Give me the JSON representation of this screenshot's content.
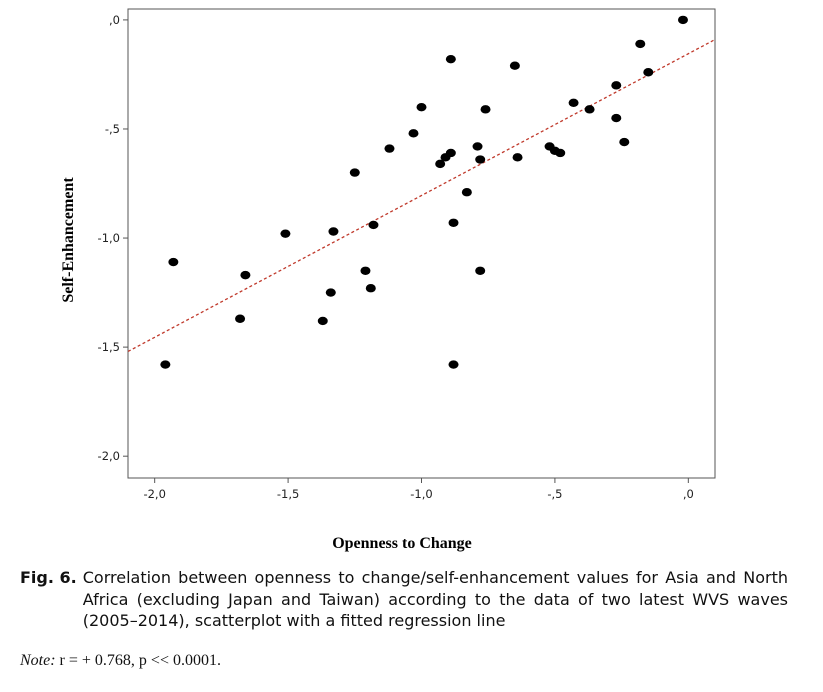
{
  "chart_data": {
    "type": "scatter",
    "xlabel": "Openness to Change",
    "ylabel": "Self-Enhancement",
    "xlim": [
      -2.1,
      0.1
    ],
    "ylim": [
      -2.1,
      0.05
    ],
    "x_ticks": [
      -2.0,
      -1.5,
      -1.0,
      -0.5,
      0.0
    ],
    "x_tick_labels": [
      "-2,0",
      "-1,5",
      "-1,0",
      "-,5",
      ",0"
    ],
    "y_ticks": [
      0.0,
      -0.5,
      -1.0,
      -1.5,
      -2.0
    ],
    "y_tick_labels": [
      ",0",
      "-,5",
      "-1,0",
      "-1,5",
      "-2,0"
    ],
    "grid": false,
    "points": [
      {
        "x": -1.96,
        "y": -1.58
      },
      {
        "x": -1.93,
        "y": -1.11
      },
      {
        "x": -1.68,
        "y": -1.37
      },
      {
        "x": -1.66,
        "y": -1.17
      },
      {
        "x": -1.51,
        "y": -0.98
      },
      {
        "x": -1.37,
        "y": -1.38
      },
      {
        "x": -1.34,
        "y": -1.25
      },
      {
        "x": -1.33,
        "y": -0.97
      },
      {
        "x": -1.25,
        "y": -0.7
      },
      {
        "x": -1.21,
        "y": -1.15
      },
      {
        "x": -1.19,
        "y": -1.23
      },
      {
        "x": -1.18,
        "y": -0.94
      },
      {
        "x": -1.12,
        "y": -0.59
      },
      {
        "x": -1.03,
        "y": -0.52
      },
      {
        "x": -1.0,
        "y": -0.4
      },
      {
        "x": -0.93,
        "y": -0.66
      },
      {
        "x": -0.91,
        "y": -0.63
      },
      {
        "x": -0.89,
        "y": -0.61
      },
      {
        "x": -0.89,
        "y": -0.18
      },
      {
        "x": -0.88,
        "y": -0.93
      },
      {
        "x": -0.88,
        "y": -1.58
      },
      {
        "x": -0.83,
        "y": -0.79
      },
      {
        "x": -0.79,
        "y": -0.58
      },
      {
        "x": -0.78,
        "y": -0.64
      },
      {
        "x": -0.78,
        "y": -1.15
      },
      {
        "x": -0.76,
        "y": -0.41
      },
      {
        "x": -0.65,
        "y": -0.21
      },
      {
        "x": -0.64,
        "y": -0.63
      },
      {
        "x": -0.52,
        "y": -0.58
      },
      {
        "x": -0.5,
        "y": -0.6
      },
      {
        "x": -0.48,
        "y": -0.61
      },
      {
        "x": -0.43,
        "y": -0.38
      },
      {
        "x": -0.37,
        "y": -0.41
      },
      {
        "x": -0.27,
        "y": -0.45
      },
      {
        "x": -0.27,
        "y": -0.3
      },
      {
        "x": -0.24,
        "y": -0.56
      },
      {
        "x": -0.18,
        "y": -0.11
      },
      {
        "x": -0.15,
        "y": -0.24
      },
      {
        "x": -0.02,
        "y": 0.0
      }
    ],
    "regression_line": {
      "x": [
        -2.1,
        0.1
      ],
      "y": [
        -1.52,
        -0.09
      ],
      "style": "dashed",
      "color": "#c0392b"
    },
    "marker_color": "#000000"
  },
  "caption": {
    "label": "Fig. 6.",
    "text": "Correlation between openness to change/self-enhancement values for Asia and North Africa (excluding Japan and Taiwan) according to the data of two latest WVS waves (2005–2014), scatterplot with a fitted regression line"
  },
  "note": {
    "label": "Note:",
    "text": "r = + 0.768, p << 0.0001."
  }
}
